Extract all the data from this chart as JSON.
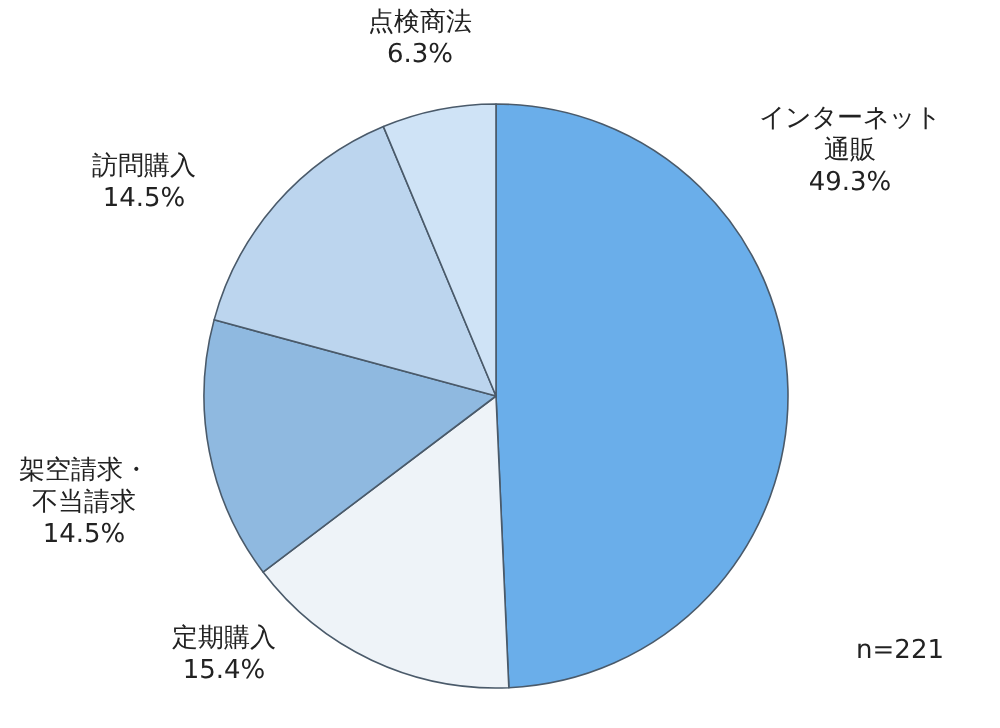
{
  "chart_data": {
    "type": "pie",
    "categories": [
      "インターネット通販",
      "定期購入",
      "架空請求・不当請求",
      "訪問購入",
      "点検商法"
    ],
    "values": [
      49.3,
      15.4,
      14.5,
      14.5,
      6.3
    ],
    "value_labels": [
      "49.3%",
      "15.4%",
      "14.5%",
      "14.5%",
      "6.3%"
    ],
    "colors": [
      "#6aaeea",
      "#eef3f8",
      "#8fb9e0",
      "#bcd5ee",
      "#cfe3f6"
    ],
    "annotations": [
      "n=221"
    ]
  }
}
